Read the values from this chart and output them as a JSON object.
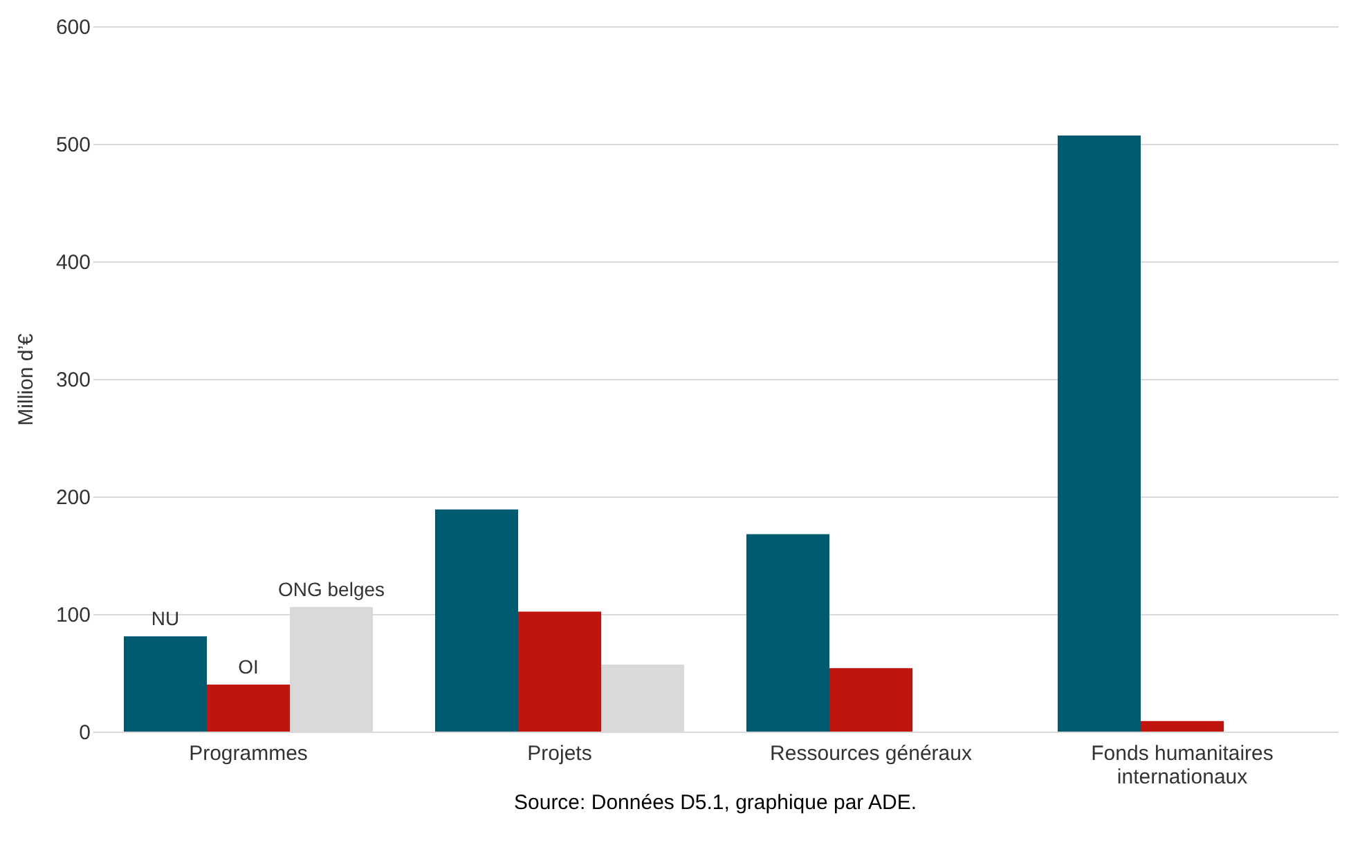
{
  "chart_data": {
    "type": "bar",
    "categories": [
      "Programmes",
      "Projets",
      "Ressources généraux",
      "Fonds humanitaires internationaux"
    ],
    "series": [
      {
        "name": "NU",
        "color": "#005a70",
        "values": [
          81,
          189,
          168,
          507
        ]
      },
      {
        "name": "OI",
        "color": "#c0140f",
        "values": [
          40,
          102,
          54,
          9
        ]
      },
      {
        "name": "ONG belges",
        "color": "#d9d9d9",
        "values": [
          106,
          57,
          0,
          0
        ]
      }
    ],
    "ylabel": "Million d’€",
    "ylim": [
      0,
      600
    ],
    "yticks": [
      0,
      100,
      200,
      300,
      400,
      500,
      600
    ],
    "grid": "y",
    "legend": false,
    "annotations": [
      "Source: Données D5.1, graphique par ADE."
    ]
  }
}
